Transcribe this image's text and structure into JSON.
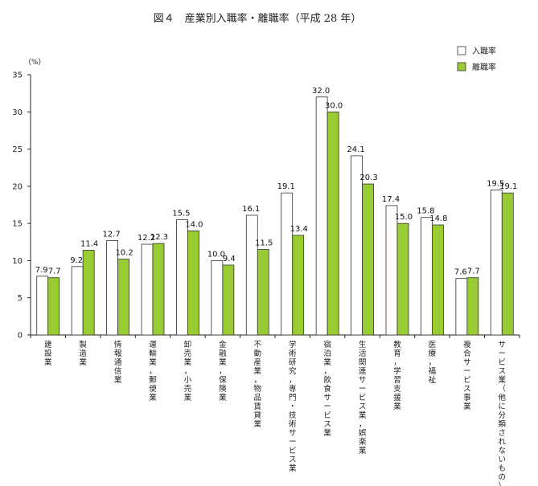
{
  "chart_data": {
    "type": "bar",
    "title": "図４　産業別入職率・離職率（平成 28 年）",
    "yunit": "（%）",
    "ylim": [
      0,
      35
    ],
    "yticks": [
      0,
      5,
      10,
      15,
      20,
      25,
      30,
      35
    ],
    "grid": false,
    "legend_position": "top-right",
    "categories": [
      "建設業",
      "製造業",
      "情報通信業",
      "運輸業，郵便業",
      "卸売業，小売業",
      "金融業，保険業",
      "不動産業，物品賃貸業",
      "学術研究，専門・技術サービス業",
      "宿泊業，飲食サービス業",
      "生活関連サービス業，娯楽業",
      "教育，学習支援業",
      "医療，福祉",
      "複合サービス事業",
      "サービス業（他に分類されないもの）"
    ],
    "series": [
      {
        "name": "入職率",
        "color": "#ffffff",
        "values": [
          7.9,
          9.2,
          12.7,
          12.2,
          15.5,
          10.0,
          16.1,
          19.1,
          32.0,
          24.1,
          17.4,
          15.8,
          7.6,
          19.5
        ],
        "labels": [
          "7.9",
          "9.2",
          "12.7",
          "12.2",
          "15.5",
          "10.0",
          "16.1",
          "19.1",
          "32.0",
          "24.1",
          "17.4",
          "15.8",
          "7.6",
          "19.5"
        ]
      },
      {
        "name": "離職率",
        "color": "#99cc33",
        "values": [
          7.7,
          11.4,
          10.2,
          12.3,
          14.0,
          9.4,
          11.5,
          13.4,
          30.0,
          20.3,
          15.0,
          14.8,
          7.7,
          19.1
        ],
        "labels": [
          "7.7",
          "11.4",
          "10.2",
          "12.3",
          "14.0",
          "9.4",
          "11.5",
          "13.4",
          "30.0",
          "20.3",
          "15.0",
          "14.8",
          "7.7",
          "19.1"
        ]
      }
    ]
  }
}
